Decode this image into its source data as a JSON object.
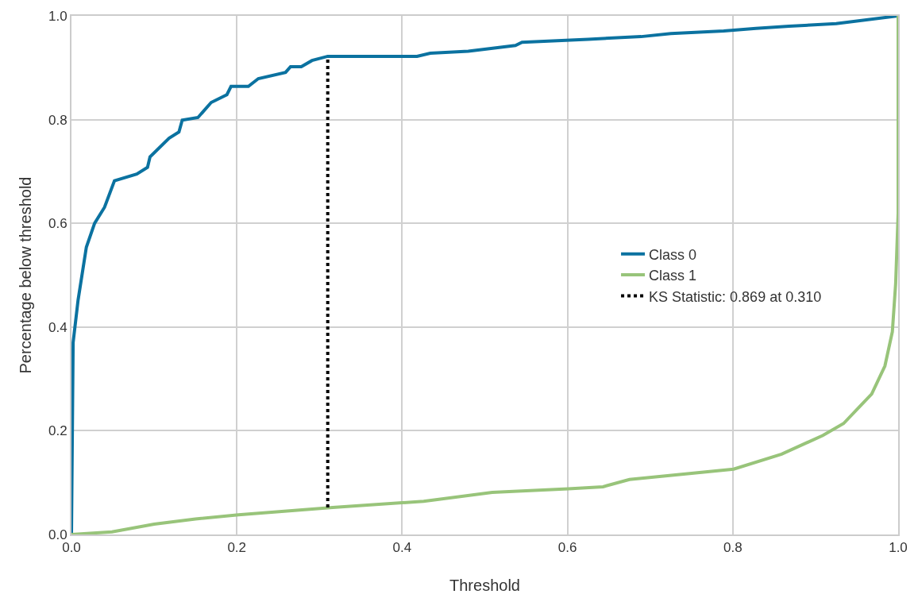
{
  "chart_data": {
    "type": "line",
    "xlabel": "Threshold",
    "ylabel": "Percentage below threshold",
    "xlim": [
      0,
      1
    ],
    "ylim": [
      0,
      1
    ],
    "xticks": [
      {
        "value": 0,
        "label": "0.0"
      },
      0.2,
      0.4,
      0.6,
      0.8,
      {
        "value": 1,
        "label": "1.0"
      }
    ],
    "yticks": [
      {
        "value": 0,
        "label": "0.0"
      },
      0.2,
      0.4,
      0.6,
      0.8,
      {
        "value": 1,
        "label": "1.0"
      }
    ],
    "grid": true,
    "legend": "right",
    "marker": "none",
    "series": [
      {
        "name": "Class 0",
        "color": "#0b72a0",
        "line_style": "solid",
        "x": [
          0,
          0.002,
          0.008,
          0.018,
          0.028,
          0.04,
          0.052,
          0.079,
          0.092,
          0.095,
          0.118,
          0.13,
          0.134,
          0.153,
          0.169,
          0.188,
          0.193,
          0.214,
          0.226,
          0.259,
          0.265,
          0.278,
          0.291,
          0.31,
          0.418,
          0.434,
          0.48,
          0.537,
          0.545,
          0.625,
          0.689,
          0.725,
          0.789,
          0.828,
          0.868,
          0.925,
          1
        ],
        "values": [
          0,
          0.37,
          0.452,
          0.554,
          0.6,
          0.631,
          0.682,
          0.695,
          0.708,
          0.728,
          0.764,
          0.776,
          0.799,
          0.804,
          0.833,
          0.848,
          0.864,
          0.864,
          0.879,
          0.891,
          0.902,
          0.902,
          0.914,
          0.922,
          0.922,
          0.928,
          0.932,
          0.943,
          0.949,
          0.955,
          0.96,
          0.966,
          0.971,
          0.976,
          0.98,
          0.985,
          1
        ]
      },
      {
        "name": "Class 1",
        "color": "#98c47a",
        "line_style": "solid",
        "x": [
          0,
          0.049,
          0.1,
          0.15,
          0.202,
          0.316,
          0.426,
          0.509,
          0.601,
          0.643,
          0.675,
          0.801,
          0.859,
          0.909,
          0.934,
          0.968,
          0.984,
          0.993,
          0.997,
          1,
          1
        ],
        "values": [
          0,
          0.005,
          0.02,
          0.03,
          0.038,
          0.052,
          0.064,
          0.081,
          0.088,
          0.092,
          0.106,
          0.126,
          0.155,
          0.191,
          0.214,
          0.271,
          0.325,
          0.391,
          0.484,
          0.62,
          1
        ]
      },
      {
        "name": "KS Statistic: 0.869 at 0.310",
        "color": "#000000",
        "line_style": "dotted",
        "x": [
          0.31,
          0.31
        ],
        "values": [
          0.052,
          0.921
        ]
      }
    ]
  }
}
